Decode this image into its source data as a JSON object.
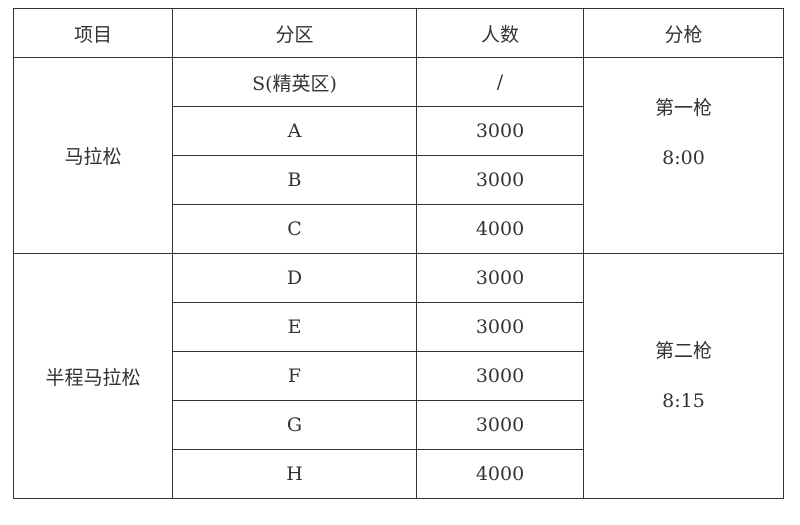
{
  "headers": [
    "项目",
    "分区",
    "人数",
    "分枪"
  ],
  "groups": [
    {
      "event": "马拉松",
      "start": [
        "第一枪",
        "8:00"
      ],
      "rows": [
        {
          "zone": "S(精英区)",
          "count": "/"
        },
        {
          "zone": "A",
          "count": "3000"
        },
        {
          "zone": "B",
          "count": "3000"
        },
        {
          "zone": "C",
          "count": "4000"
        }
      ]
    },
    {
      "event": "半程马拉松",
      "start": [
        "第二枪",
        "8:15"
      ],
      "rows": [
        {
          "zone": "D",
          "count": "3000"
        },
        {
          "zone": "E",
          "count": "3000"
        },
        {
          "zone": "F",
          "count": "3000"
        },
        {
          "zone": "G",
          "count": "3000"
        },
        {
          "zone": "H",
          "count": "4000"
        }
      ]
    }
  ]
}
